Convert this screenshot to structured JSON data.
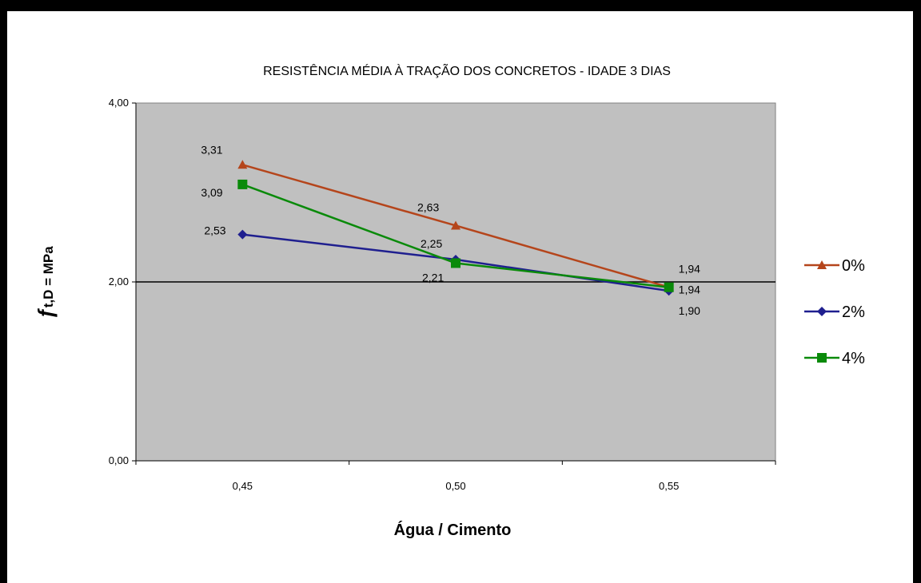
{
  "chart_data": {
    "type": "line",
    "title": "RESISTÊNCIA MÉDIA À TRAÇÃO DOS CONCRETOS - IDADE 3 DIAS",
    "xlabel": "Água / Cimento",
    "ylabel_main": "ƒ",
    "ylabel_rest": "t,D = MPa",
    "categories": [
      "0,45",
      "0,50",
      "0,55"
    ],
    "ylim": [
      0,
      4
    ],
    "y_ticks": [
      "0,00",
      "2,00",
      "4,00"
    ],
    "y_tick_values": [
      0,
      2,
      4
    ],
    "plot_background": "#c0c0c0",
    "legend_position": "right",
    "series": [
      {
        "name": "0%",
        "values": [
          3.31,
          2.63,
          1.94
        ],
        "labels": [
          "3,31",
          "2,63",
          "1,94"
        ],
        "color": "#b5451b",
        "marker": "triangle"
      },
      {
        "name": "2%",
        "values": [
          2.53,
          2.25,
          1.9
        ],
        "labels": [
          "2,53",
          "2,25",
          "1,90"
        ],
        "color": "#1f1f8f",
        "marker": "diamond"
      },
      {
        "name": "4%",
        "values": [
          3.09,
          2.21,
          1.94
        ],
        "labels": [
          "3,09",
          "2,21",
          "1,94"
        ],
        "color": "#0a8a0a",
        "marker": "square"
      }
    ]
  }
}
